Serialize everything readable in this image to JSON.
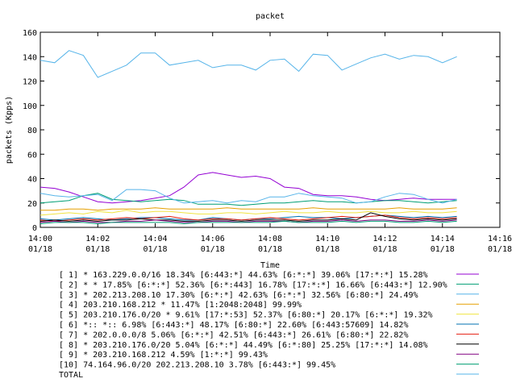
{
  "chart_data": {
    "type": "line",
    "title": "packet",
    "xlabel": "Time",
    "ylabel": "packets (Kpps)",
    "ylim": [
      0,
      160
    ],
    "yticks": [
      0,
      20,
      40,
      60,
      80,
      100,
      120,
      140,
      160
    ],
    "xlim": [
      "14:00",
      "14:16"
    ],
    "xticks": [
      {
        "time": "14:00",
        "date": "01/18"
      },
      {
        "time": "14:02",
        "date": "01/18"
      },
      {
        "time": "14:04",
        "date": "01/18"
      },
      {
        "time": "14:06",
        "date": "01/18"
      },
      {
        "time": "14:08",
        "date": "01/18"
      },
      {
        "time": "14:10",
        "date": "01/18"
      },
      {
        "time": "14:12",
        "date": "01/18"
      },
      {
        "time": "14:14",
        "date": "01/18"
      },
      {
        "time": "14:16",
        "date": "01/18"
      }
    ],
    "x": [
      "14:00:00",
      "14:00:30",
      "14:01:00",
      "14:01:30",
      "14:02:00",
      "14:02:30",
      "14:03:00",
      "14:03:30",
      "14:04:00",
      "14:04:30",
      "14:05:00",
      "14:05:30",
      "14:06:00",
      "14:06:30",
      "14:07:00",
      "14:07:30",
      "14:08:00",
      "14:08:30",
      "14:09:00",
      "14:09:30",
      "14:10:00",
      "14:10:30",
      "14:11:00",
      "14:11:30",
      "14:12:00",
      "14:12:30",
      "14:13:00",
      "14:13:30",
      "14:14:00",
      "14:14:30"
    ],
    "grid": false,
    "legend_position": "bottom",
    "series": [
      {
        "name": "[ 1] * 163.229.0.0/16 18.34%  [6:443:*] 44.63% [6:*:*] 39.06% [17:*:*] 15.28%",
        "color": "#9400d3",
        "values": [
          33,
          32,
          29,
          25,
          21,
          20,
          21,
          22,
          24,
          26,
          33,
          43,
          45,
          43,
          41,
          42,
          40,
          33,
          32,
          27,
          26,
          26,
          25,
          23,
          22,
          23,
          24,
          23,
          23,
          23
        ]
      },
      {
        "name": "[ 2] * * 17.85%  [6:*:*] 52.36% [6:*:443] 16.78% [17:*:*] 16.66% [6:443:*] 12.90%",
        "color": "#009e73",
        "values": [
          20,
          21,
          22,
          26,
          28,
          23,
          22,
          21,
          22,
          23,
          22,
          19,
          19,
          19,
          18,
          19,
          20,
          20,
          21,
          22,
          21,
          21,
          20,
          21,
          22,
          22,
          21,
          20,
          21,
          22
        ]
      },
      {
        "name": "[ 3] * 202.213.208.10 17.30%  [6:*:*] 42.63% [6:*:*] 32.56% [6:80:*] 24.49%",
        "color": "#56b4e9",
        "values": [
          28,
          26,
          25,
          26,
          27,
          22,
          31,
          31,
          30,
          24,
          20,
          21,
          22,
          20,
          22,
          21,
          25,
          25,
          28,
          26,
          25,
          24,
          20,
          21,
          25,
          28,
          27,
          23,
          20,
          23
        ]
      },
      {
        "name": "[ 4] 203.210.168.212 * 11.47%  [1:2048:2048] 99.99%",
        "color": "#e69f00",
        "values": [
          14,
          14,
          15,
          15,
          14,
          15,
          15,
          15,
          16,
          15,
          15,
          15,
          15,
          16,
          15,
          15,
          15,
          15,
          15,
          16,
          15,
          15,
          15,
          15,
          15,
          16,
          15,
          15,
          15,
          16
        ]
      },
      {
        "name": "[ 5] 203.210.176.0/20 * 9.61%  [17:*:53] 52.37% [6:80:*] 20.17% [6:*:*] 19.32%",
        "color": "#f0e442",
        "values": [
          10,
          11,
          12,
          11,
          13,
          12,
          14,
          12,
          13,
          13,
          12,
          11,
          11,
          12,
          12,
          11,
          12,
          13,
          12,
          12,
          13,
          12,
          12,
          13,
          12,
          12,
          13,
          12,
          12,
          13
        ]
      },
      {
        "name": "[ 6] *:: *:: 6.98%  [6:443:*] 48.17% [6:80:*] 22.60% [6:443:57609] 14.82%",
        "color": "#0072b2",
        "values": [
          7,
          6,
          7,
          8,
          7,
          6,
          7,
          8,
          8,
          7,
          6,
          6,
          8,
          7,
          6,
          7,
          7,
          8,
          9,
          8,
          8,
          7,
          8,
          9,
          10,
          9,
          8,
          9,
          8,
          9
        ]
      },
      {
        "name": "[ 7] * 202.0.0.0/8 5.06%  [6:*:*] 42.51% [6:443:*] 26.61% [6:80:*] 22.82%",
        "color": "#e51e10",
        "values": [
          6,
          5,
          6,
          7,
          6,
          7,
          8,
          7,
          8,
          9,
          7,
          6,
          7,
          7,
          6,
          7,
          8,
          7,
          6,
          7,
          8,
          9,
          8,
          9,
          10,
          8,
          7,
          8,
          7,
          8
        ]
      },
      {
        "name": "[ 8] * 203.210.176.0/20 5.04%  [6:*:*] 44.49% [6:*:80] 25.25% [17:*:*] 14.08%",
        "color": "#000000",
        "values": [
          5,
          6,
          5,
          6,
          5,
          6,
          6,
          7,
          6,
          6,
          5,
          5,
          6,
          6,
          5,
          6,
          6,
          6,
          5,
          6,
          6,
          7,
          6,
          12,
          9,
          7,
          6,
          7,
          6,
          7
        ]
      },
      {
        "name": "[ 9] * 203.210.168.212 4.59%  [1:*:*] 99.43%",
        "color": "#800080",
        "values": [
          4,
          5,
          4,
          5,
          4,
          4,
          5,
          5,
          6,
          5,
          4,
          4,
          5,
          5,
          4,
          5,
          5,
          5,
          4,
          5,
          5,
          6,
          5,
          6,
          6,
          5,
          5,
          6,
          5,
          6
        ]
      },
      {
        "name": "[10] 74.164.96.0/20 202.213.208.10 3.78%  [6:443:*] 99.45%",
        "color": "#009e73",
        "values": [
          3,
          4,
          4,
          4,
          3,
          4,
          4,
          4,
          4,
          4,
          3,
          4,
          4,
          4,
          4,
          4,
          4,
          5,
          4,
          4,
          4,
          5,
          4,
          5,
          5,
          4,
          4,
          5,
          4,
          5
        ]
      },
      {
        "name": "TOTAL",
        "color": "#56b4e9",
        "values": [
          137,
          135,
          145,
          141,
          123,
          128,
          133,
          143,
          143,
          133,
          135,
          137,
          131,
          133,
          133,
          129,
          137,
          138,
          128,
          142,
          141,
          129,
          134,
          139,
          142,
          138,
          141,
          140,
          135,
          140
        ]
      }
    ]
  }
}
